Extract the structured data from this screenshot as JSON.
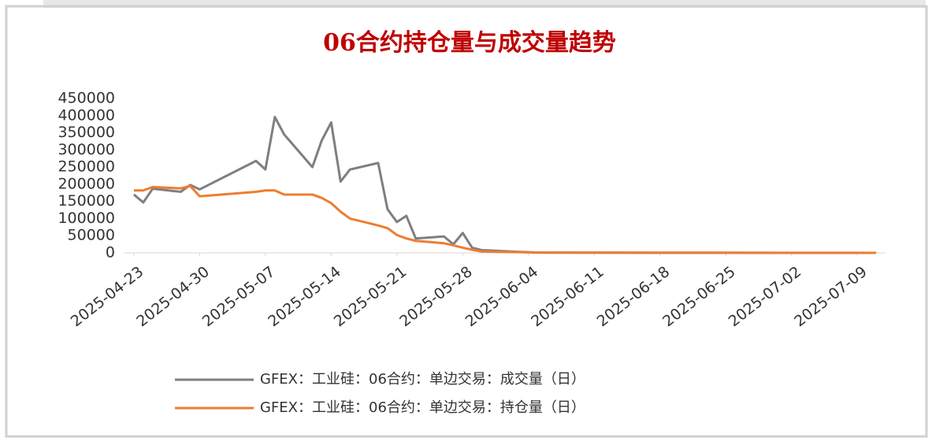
{
  "chart_data": {
    "type": "line",
    "title": "06合约持仓量与成交量趋势",
    "x": [
      "2025-04-23",
      "2025-04-24",
      "2025-04-25",
      "2025-04-28",
      "2025-04-29",
      "2025-04-30",
      "2025-05-06",
      "2025-05-07",
      "2025-05-08",
      "2025-05-09",
      "2025-05-12",
      "2025-05-13",
      "2025-05-14",
      "2025-05-15",
      "2025-05-16",
      "2025-05-19",
      "2025-05-20",
      "2025-05-21",
      "2025-05-22",
      "2025-05-23",
      "2025-05-26",
      "2025-05-27",
      "2025-05-28",
      "2025-05-29",
      "2025-05-30",
      "2025-06-03",
      "2025-06-04",
      "2025-06-05",
      "2025-06-10",
      "2025-06-17",
      "2025-06-24",
      "2025-07-01",
      "2025-07-08",
      "2025-07-11"
    ],
    "series": [
      {
        "name": "GFEX：工业硅：06合约：单边交易：成交量（日）",
        "color": "#7f7f7f",
        "values": [
          170000,
          147000,
          187000,
          178000,
          198000,
          185000,
          268000,
          243000,
          396000,
          345000,
          250000,
          328000,
          380000,
          208000,
          243000,
          262000,
          127000,
          90000,
          108000,
          42000,
          48000,
          25000,
          58000,
          15000,
          8000,
          3000,
          2000,
          1000,
          500,
          300,
          200,
          100,
          100,
          0
        ]
      },
      {
        "name": "GFEX：工业硅：06合约：单边交易：持仓量（日）",
        "color": "#ed7d31",
        "values": [
          182000,
          182000,
          192000,
          188000,
          195000,
          165000,
          178000,
          182000,
          182000,
          170000,
          170000,
          160000,
          145000,
          120000,
          100000,
          80000,
          72000,
          52000,
          42000,
          35000,
          28000,
          22000,
          15000,
          9000,
          4000,
          2000,
          1500,
          1000,
          800,
          600,
          500,
          400,
          300,
          0
        ]
      }
    ],
    "xlim": [
      "2025-04-22",
      "2025-07-12"
    ],
    "xticks": [
      "2025-04-23",
      "2025-04-30",
      "2025-05-07",
      "2025-05-14",
      "2025-05-21",
      "2025-05-28",
      "2025-06-04",
      "2025-06-11",
      "2025-06-18",
      "2025-06-25",
      "2025-07-02",
      "2025-07-09"
    ],
    "ylim": [
      0,
      450000
    ],
    "yticks": [
      0,
      50000,
      100000,
      150000,
      200000,
      250000,
      300000,
      350000,
      400000,
      450000
    ],
    "legend": "bottom"
  }
}
